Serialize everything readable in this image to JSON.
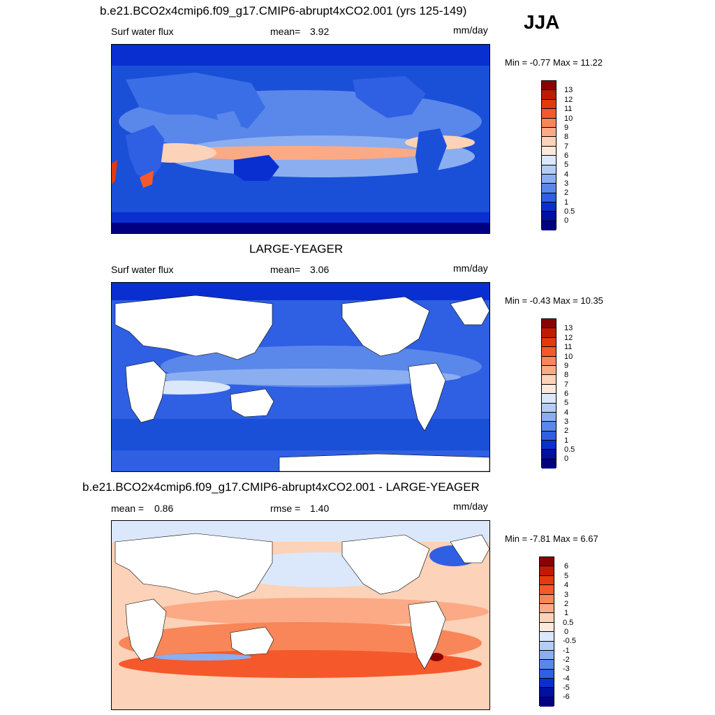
{
  "season": "JJA",
  "panels": [
    {
      "title": "b.e21.BCO2x4cmip6.f09_g17.CMIP6-abrupt4xCO2.001 (yrs 125-149)",
      "left_label": "Surf water flux",
      "stat_label": "mean=",
      "stat_value": "3.92",
      "units": "mm/day",
      "minmax": "Min =  -0.77 Max =  11.22",
      "land_filled": true,
      "colorbar_labels": [
        "13",
        "12",
        "11",
        "10",
        "9",
        "8",
        "7",
        "6",
        "5",
        "4",
        "3",
        "2",
        "1",
        "0.5",
        "0"
      ]
    },
    {
      "title": "LARGE-YEAGER",
      "left_label": "Surf water flux",
      "stat_label": "mean=",
      "stat_value": "3.06",
      "units": "mm/day",
      "minmax": "Min =  -0.43 Max =  10.35",
      "land_filled": false,
      "colorbar_labels": [
        "13",
        "12",
        "11",
        "10",
        "9",
        "8",
        "7",
        "6",
        "5",
        "4",
        "3",
        "2",
        "1",
        "0.5",
        "0"
      ]
    },
    {
      "title": "b.e21.BCO2x4cmip6.f09_g17.CMIP6-abrupt4xCO2.001 - LARGE-YEAGER",
      "left_label": "mean =",
      "left_value": "0.86",
      "stat_label": "rmse =",
      "stat_value": "1.40",
      "units": "mm/day",
      "minmax": "Min =  -7.81 Max =   6.67",
      "land_filled": false,
      "colorbar_labels": [
        "6",
        "5",
        "4",
        "3",
        "2",
        "1",
        "0.5",
        "0",
        "-0.5",
        "-1",
        "-2",
        "-3",
        "-4",
        "-5",
        "-6"
      ]
    }
  ],
  "colors": {
    "abs_scale": [
      "#8b0000",
      "#c01a00",
      "#e33a0d",
      "#f5592b",
      "#f88658",
      "#fbaa85",
      "#fcd2b8",
      "#fde9dc",
      "#dbe8fb",
      "#b4cdf5",
      "#8aaef0",
      "#5a87ea",
      "#2f5fe3",
      "#0a2fd0",
      "#0010a0",
      "#000080"
    ],
    "diff_scale": [
      "#8b0000",
      "#c01a00",
      "#e33a0d",
      "#f5592b",
      "#f88658",
      "#fbaa85",
      "#fcd2b8",
      "#fde9dc",
      "#dbe8fb",
      "#b4cdf5",
      "#8aaef0",
      "#5a87ea",
      "#2f5fe3",
      "#0a2fd0",
      "#0010a0",
      "#000080"
    ]
  }
}
